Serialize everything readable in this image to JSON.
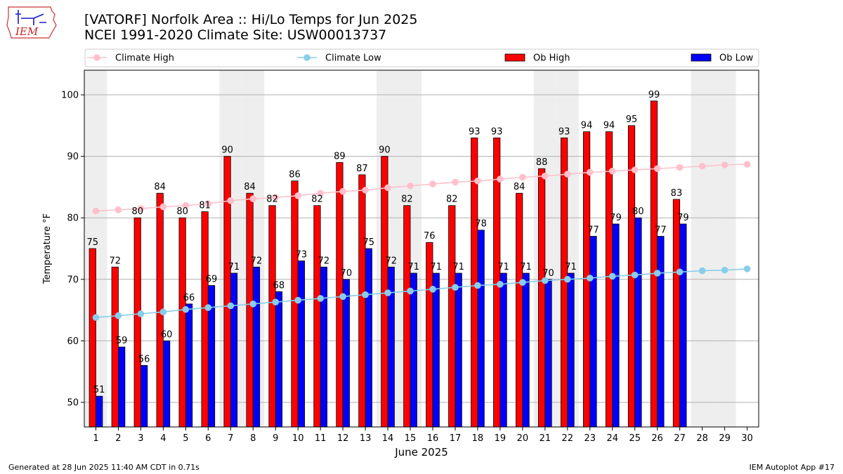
{
  "header": {
    "title_line1": "[VATORF] Norfolk Area :: Hi/Lo Temps for Jun 2025",
    "title_line2": "NCEI 1991-2020 Climate Site: USW00013737",
    "logo_text": "IEM"
  },
  "footer": {
    "left": "Generated at 28 Jun 2025 11:40 AM CDT in 0.71s",
    "right": "IEM Autoplot App #17"
  },
  "colors": {
    "ob_high": "#ff0000",
    "ob_low": "#0000ff",
    "climate_high": "#ffc0cb",
    "climate_low": "#87ceeb",
    "weekend_band": "#eeeeee",
    "grid": "#b0b0b0"
  },
  "chart_data": {
    "type": "bar",
    "xlabel": "June 2025",
    "ylabel": "Temperature °F",
    "ylim": [
      46,
      104
    ],
    "yticks": [
      50,
      60,
      70,
      80,
      90,
      100
    ],
    "grid": "horizontal",
    "legend_position": "top",
    "days": [
      1,
      2,
      3,
      4,
      5,
      6,
      7,
      8,
      9,
      10,
      11,
      12,
      13,
      14,
      15,
      16,
      17,
      18,
      19,
      20,
      21,
      22,
      23,
      24,
      25,
      26,
      27,
      28,
      29,
      30
    ],
    "weekend_days": [
      1,
      7,
      8,
      14,
      15,
      21,
      22,
      28,
      29
    ],
    "series": [
      {
        "name": "Climate High",
        "kind": "line",
        "values": [
          81.1,
          81.3,
          81.5,
          81.8,
          82.0,
          82.3,
          82.8,
          83.1,
          83.3,
          83.6,
          84.0,
          84.3,
          84.5,
          84.9,
          85.2,
          85.5,
          85.8,
          86.0,
          86.3,
          86.6,
          86.8,
          87.1,
          87.4,
          87.6,
          87.8,
          88.0,
          88.2,
          88.4,
          88.6,
          88.7
        ]
      },
      {
        "name": "Climate Low",
        "kind": "line",
        "values": [
          63.8,
          64.1,
          64.4,
          64.7,
          65.1,
          65.4,
          65.7,
          66.0,
          66.3,
          66.6,
          66.9,
          67.2,
          67.5,
          67.8,
          68.1,
          68.4,
          68.7,
          69.0,
          69.2,
          69.5,
          69.8,
          70.0,
          70.2,
          70.5,
          70.7,
          71.0,
          71.2,
          71.4,
          71.5,
          71.7
        ]
      },
      {
        "name": "Ob High",
        "kind": "bar",
        "values": [
          75,
          72,
          80,
          84,
          80,
          81,
          90,
          84,
          82,
          86,
          82,
          89,
          87,
          90,
          82,
          76,
          82,
          93,
          93,
          84,
          88,
          93,
          94,
          94,
          95,
          99,
          83
        ]
      },
      {
        "name": "Ob Low",
        "kind": "bar",
        "values": [
          51,
          59,
          56,
          60,
          66,
          69,
          71,
          72,
          68,
          73,
          72,
          70,
          75,
          72,
          71,
          71,
          71,
          78,
          71,
          71,
          70,
          71,
          77,
          79,
          80,
          77,
          79
        ]
      }
    ]
  }
}
